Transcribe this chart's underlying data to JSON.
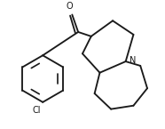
{
  "bg": "#ffffff",
  "lc": "#1a1a1a",
  "lw": 1.35,
  "fs": 7.0,
  "N_label": "N",
  "Cl_label": "Cl",
  "O_label": "O",
  "xlim": [
    0,
    186
  ],
  "ylim": [
    0,
    145
  ]
}
